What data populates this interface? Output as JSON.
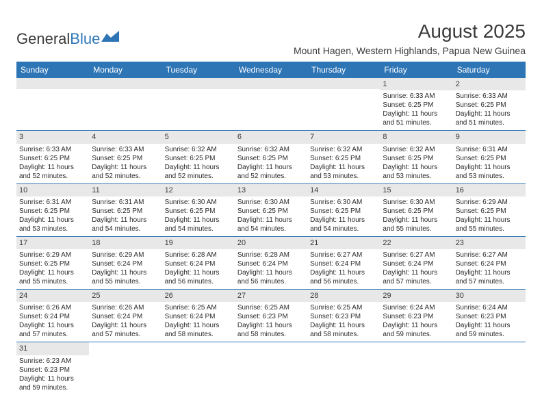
{
  "logo": {
    "text1": "General",
    "text2": "Blue"
  },
  "title": "August 2025",
  "location": "Mount Hagen, Western Highlands, Papua New Guinea",
  "colors": {
    "header_bg": "#2e75b6",
    "header_text": "#ffffff",
    "daynum_bg": "#e8e8e8",
    "row_border": "#2e75b6",
    "text": "#2a2a2a",
    "logo_gray": "#3a3a3a",
    "logo_blue": "#2e75b6"
  },
  "day_names": [
    "Sunday",
    "Monday",
    "Tuesday",
    "Wednesday",
    "Thursday",
    "Friday",
    "Saturday"
  ],
  "weeks": [
    [
      {
        "empty": true
      },
      {
        "empty": true
      },
      {
        "empty": true
      },
      {
        "empty": true
      },
      {
        "empty": true
      },
      {
        "num": "1",
        "sunrise": "Sunrise: 6:33 AM",
        "sunset": "Sunset: 6:25 PM",
        "daylight": "Daylight: 11 hours and 51 minutes."
      },
      {
        "num": "2",
        "sunrise": "Sunrise: 6:33 AM",
        "sunset": "Sunset: 6:25 PM",
        "daylight": "Daylight: 11 hours and 51 minutes."
      }
    ],
    [
      {
        "num": "3",
        "sunrise": "Sunrise: 6:33 AM",
        "sunset": "Sunset: 6:25 PM",
        "daylight": "Daylight: 11 hours and 52 minutes."
      },
      {
        "num": "4",
        "sunrise": "Sunrise: 6:33 AM",
        "sunset": "Sunset: 6:25 PM",
        "daylight": "Daylight: 11 hours and 52 minutes."
      },
      {
        "num": "5",
        "sunrise": "Sunrise: 6:32 AM",
        "sunset": "Sunset: 6:25 PM",
        "daylight": "Daylight: 11 hours and 52 minutes."
      },
      {
        "num": "6",
        "sunrise": "Sunrise: 6:32 AM",
        "sunset": "Sunset: 6:25 PM",
        "daylight": "Daylight: 11 hours and 52 minutes."
      },
      {
        "num": "7",
        "sunrise": "Sunrise: 6:32 AM",
        "sunset": "Sunset: 6:25 PM",
        "daylight": "Daylight: 11 hours and 53 minutes."
      },
      {
        "num": "8",
        "sunrise": "Sunrise: 6:32 AM",
        "sunset": "Sunset: 6:25 PM",
        "daylight": "Daylight: 11 hours and 53 minutes."
      },
      {
        "num": "9",
        "sunrise": "Sunrise: 6:31 AM",
        "sunset": "Sunset: 6:25 PM",
        "daylight": "Daylight: 11 hours and 53 minutes."
      }
    ],
    [
      {
        "num": "10",
        "sunrise": "Sunrise: 6:31 AM",
        "sunset": "Sunset: 6:25 PM",
        "daylight": "Daylight: 11 hours and 53 minutes."
      },
      {
        "num": "11",
        "sunrise": "Sunrise: 6:31 AM",
        "sunset": "Sunset: 6:25 PM",
        "daylight": "Daylight: 11 hours and 54 minutes."
      },
      {
        "num": "12",
        "sunrise": "Sunrise: 6:30 AM",
        "sunset": "Sunset: 6:25 PM",
        "daylight": "Daylight: 11 hours and 54 minutes."
      },
      {
        "num": "13",
        "sunrise": "Sunrise: 6:30 AM",
        "sunset": "Sunset: 6:25 PM",
        "daylight": "Daylight: 11 hours and 54 minutes."
      },
      {
        "num": "14",
        "sunrise": "Sunrise: 6:30 AM",
        "sunset": "Sunset: 6:25 PM",
        "daylight": "Daylight: 11 hours and 54 minutes."
      },
      {
        "num": "15",
        "sunrise": "Sunrise: 6:30 AM",
        "sunset": "Sunset: 6:25 PM",
        "daylight": "Daylight: 11 hours and 55 minutes."
      },
      {
        "num": "16",
        "sunrise": "Sunrise: 6:29 AM",
        "sunset": "Sunset: 6:25 PM",
        "daylight": "Daylight: 11 hours and 55 minutes."
      }
    ],
    [
      {
        "num": "17",
        "sunrise": "Sunrise: 6:29 AM",
        "sunset": "Sunset: 6:25 PM",
        "daylight": "Daylight: 11 hours and 55 minutes."
      },
      {
        "num": "18",
        "sunrise": "Sunrise: 6:29 AM",
        "sunset": "Sunset: 6:24 PM",
        "daylight": "Daylight: 11 hours and 55 minutes."
      },
      {
        "num": "19",
        "sunrise": "Sunrise: 6:28 AM",
        "sunset": "Sunset: 6:24 PM",
        "daylight": "Daylight: 11 hours and 56 minutes."
      },
      {
        "num": "20",
        "sunrise": "Sunrise: 6:28 AM",
        "sunset": "Sunset: 6:24 PM",
        "daylight": "Daylight: 11 hours and 56 minutes."
      },
      {
        "num": "21",
        "sunrise": "Sunrise: 6:27 AM",
        "sunset": "Sunset: 6:24 PM",
        "daylight": "Daylight: 11 hours and 56 minutes."
      },
      {
        "num": "22",
        "sunrise": "Sunrise: 6:27 AM",
        "sunset": "Sunset: 6:24 PM",
        "daylight": "Daylight: 11 hours and 57 minutes."
      },
      {
        "num": "23",
        "sunrise": "Sunrise: 6:27 AM",
        "sunset": "Sunset: 6:24 PM",
        "daylight": "Daylight: 11 hours and 57 minutes."
      }
    ],
    [
      {
        "num": "24",
        "sunrise": "Sunrise: 6:26 AM",
        "sunset": "Sunset: 6:24 PM",
        "daylight": "Daylight: 11 hours and 57 minutes."
      },
      {
        "num": "25",
        "sunrise": "Sunrise: 6:26 AM",
        "sunset": "Sunset: 6:24 PM",
        "daylight": "Daylight: 11 hours and 57 minutes."
      },
      {
        "num": "26",
        "sunrise": "Sunrise: 6:25 AM",
        "sunset": "Sunset: 6:24 PM",
        "daylight": "Daylight: 11 hours and 58 minutes."
      },
      {
        "num": "27",
        "sunrise": "Sunrise: 6:25 AM",
        "sunset": "Sunset: 6:23 PM",
        "daylight": "Daylight: 11 hours and 58 minutes."
      },
      {
        "num": "28",
        "sunrise": "Sunrise: 6:25 AM",
        "sunset": "Sunset: 6:23 PM",
        "daylight": "Daylight: 11 hours and 58 minutes."
      },
      {
        "num": "29",
        "sunrise": "Sunrise: 6:24 AM",
        "sunset": "Sunset: 6:23 PM",
        "daylight": "Daylight: 11 hours and 59 minutes."
      },
      {
        "num": "30",
        "sunrise": "Sunrise: 6:24 AM",
        "sunset": "Sunset: 6:23 PM",
        "daylight": "Daylight: 11 hours and 59 minutes."
      }
    ],
    [
      {
        "num": "31",
        "sunrise": "Sunrise: 6:23 AM",
        "sunset": "Sunset: 6:23 PM",
        "daylight": "Daylight: 11 hours and 59 minutes."
      },
      {
        "empty": true,
        "noBar": true
      },
      {
        "empty": true,
        "noBar": true
      },
      {
        "empty": true,
        "noBar": true
      },
      {
        "empty": true,
        "noBar": true
      },
      {
        "empty": true,
        "noBar": true
      },
      {
        "empty": true,
        "noBar": true
      }
    ]
  ]
}
